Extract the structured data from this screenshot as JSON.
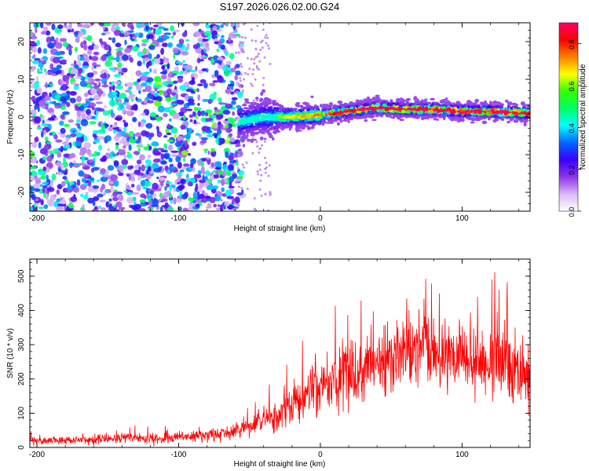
{
  "title": "S197.2026.026.02.00.G24",
  "chart_data": [
    {
      "type": "heatmap",
      "xlabel": "Height of straight line (km)",
      "ylabel": "Frequency (Hz)",
      "xlim": [
        -205,
        148
      ],
      "ylim": [
        -25,
        25
      ],
      "xticks": [
        -200,
        -100,
        0,
        100
      ],
      "yticks": [
        -20,
        -10,
        0,
        10,
        20
      ],
      "colorbar": {
        "label": "Normalized spectral amplitude",
        "range": [
          0.0,
          0.9
        ],
        "ticks": [
          "0.0",
          "0.2",
          "0.4",
          "0.6",
          "0.8"
        ],
        "tick_values": [
          0.0,
          0.2,
          0.4,
          0.6,
          0.8
        ],
        "colors": [
          "#ffffff",
          "#d9b8f5",
          "#8c35e8",
          "#3b00ff",
          "#0066ff",
          "#00ffff",
          "#00ff66",
          "#33ff00",
          "#ffff00",
          "#ff8000",
          "#ff0000",
          "#ff0066"
        ]
      },
      "ridge": {
        "description_points_x": [
          -60,
          -40,
          -20,
          0,
          20,
          40,
          60,
          80,
          100,
          120,
          145
        ],
        "frequency": [
          -1.5,
          0,
          0,
          0.5,
          1.5,
          2.5,
          2.0,
          2.0,
          1.5,
          1.5,
          1.0
        ]
      }
    },
    {
      "type": "line",
      "xlabel": "Height of straight line (km)",
      "ylabel": "SNR (10 * v/v)",
      "xlim": [
        -205,
        148
      ],
      "ylim": [
        0,
        550
      ],
      "xticks": [
        -200,
        -100,
        0,
        100
      ],
      "yticks": [
        0,
        100,
        200,
        300,
        400,
        500
      ],
      "color": "#ff0000",
      "series": [
        {
          "name": "SNR",
          "x": [
            -205,
            -190,
            -170,
            -150,
            -130,
            -110,
            -90,
            -70,
            -60,
            -50,
            -40,
            -30,
            -20,
            -10,
            0,
            10,
            20,
            30,
            40,
            50,
            60,
            70,
            80,
            90,
            100,
            110,
            120,
            130,
            140,
            148
          ],
          "y": [
            20,
            20,
            22,
            25,
            28,
            26,
            32,
            40,
            45,
            60,
            75,
            95,
            120,
            150,
            170,
            195,
            215,
            230,
            245,
            255,
            265,
            268,
            270,
            260,
            265,
            250,
            260,
            240,
            230,
            225
          ],
          "spread": [
            12,
            12,
            14,
            15,
            18,
            18,
            20,
            25,
            28,
            35,
            45,
            55,
            70,
            80,
            90,
            100,
            110,
            110,
            115,
            115,
            115,
            115,
            115,
            115,
            115,
            115,
            115,
            115,
            120,
            120
          ]
        }
      ]
    }
  ]
}
